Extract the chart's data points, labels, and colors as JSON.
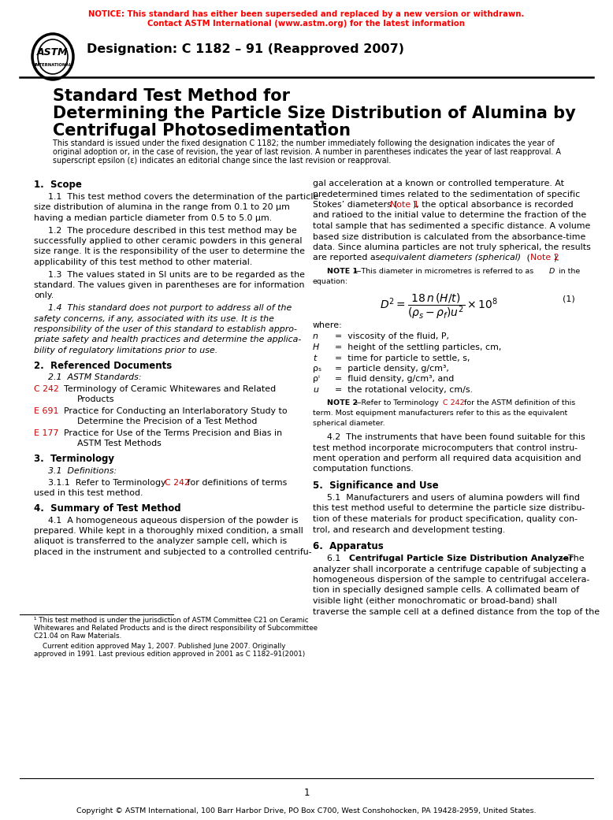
{
  "notice_line1": "NOTICE: This standard has either been superseded and replaced by a new version or withdrawn.",
  "notice_line2": "Contact ASTM International (www.astm.org) for the latest information",
  "notice_color": "#FF0000",
  "designation": "Designation: C 1182 – 91 (Reapproved 2007)",
  "bg_color": "#FFFFFF",
  "text_color": "#000000",
  "red_color": "#CC0000",
  "page_num": "1",
  "copyright": "Copyright © ASTM International, 100 Barr Harbor Drive, PO Box C700, West Conshohocken, PA 19428-2959, United States."
}
